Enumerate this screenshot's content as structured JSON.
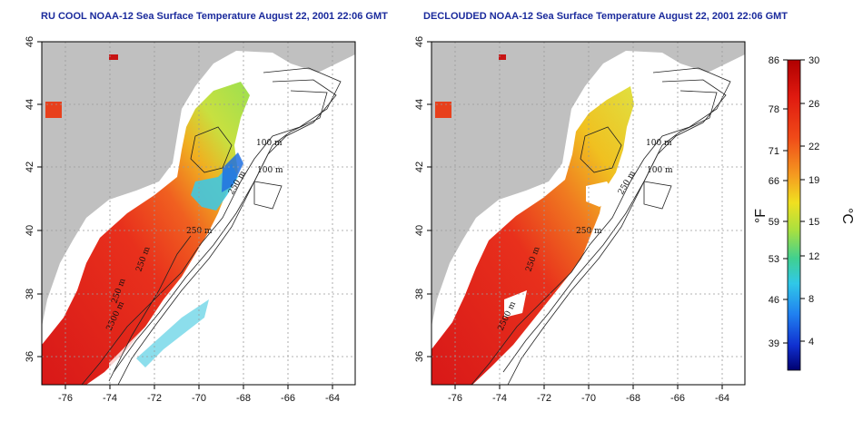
{
  "panels": [
    {
      "title": "RU COOL NOAA-12 Sea Surface Temperature August 22, 2001 22:06 GMT",
      "contours": [
        "100 m",
        "100 m",
        "250 m",
        "250 m",
        "250 m",
        "250 m",
        "2500 m"
      ]
    },
    {
      "title": "DECLOUDED NOAA-12 Sea Surface Temperature August 22, 2001 22:06 GMT",
      "contours": [
        "100 m",
        "100 m",
        "250 m",
        "250 m",
        "250 m",
        "2500 m"
      ]
    }
  ],
  "axes": {
    "x_ticks": [
      "-76",
      "-74",
      "-72",
      "-70",
      "-68",
      "-66",
      "-64"
    ],
    "y_ticks": [
      "46",
      "44",
      "42",
      "40",
      "38",
      "36"
    ]
  },
  "colorbar": {
    "fahrenheit_ticks": [
      "86",
      "78",
      "71",
      "66",
      "59",
      "53",
      "46",
      "39"
    ],
    "celsius_ticks": [
      "30",
      "26",
      "22",
      "19",
      "15",
      "12",
      "8",
      "4"
    ],
    "left_unit": "°F",
    "right_unit": "°C"
  },
  "colors": {
    "land": "#c0c0c0",
    "ocean": "#ffffff",
    "title": "#1a2a9c",
    "warm": "#e8281c",
    "hot": "#c81414",
    "orange": "#f07a20",
    "yellow": "#f0d020",
    "green": "#9ce050",
    "cyan": "#40c8e0",
    "blue": "#2060e0"
  }
}
